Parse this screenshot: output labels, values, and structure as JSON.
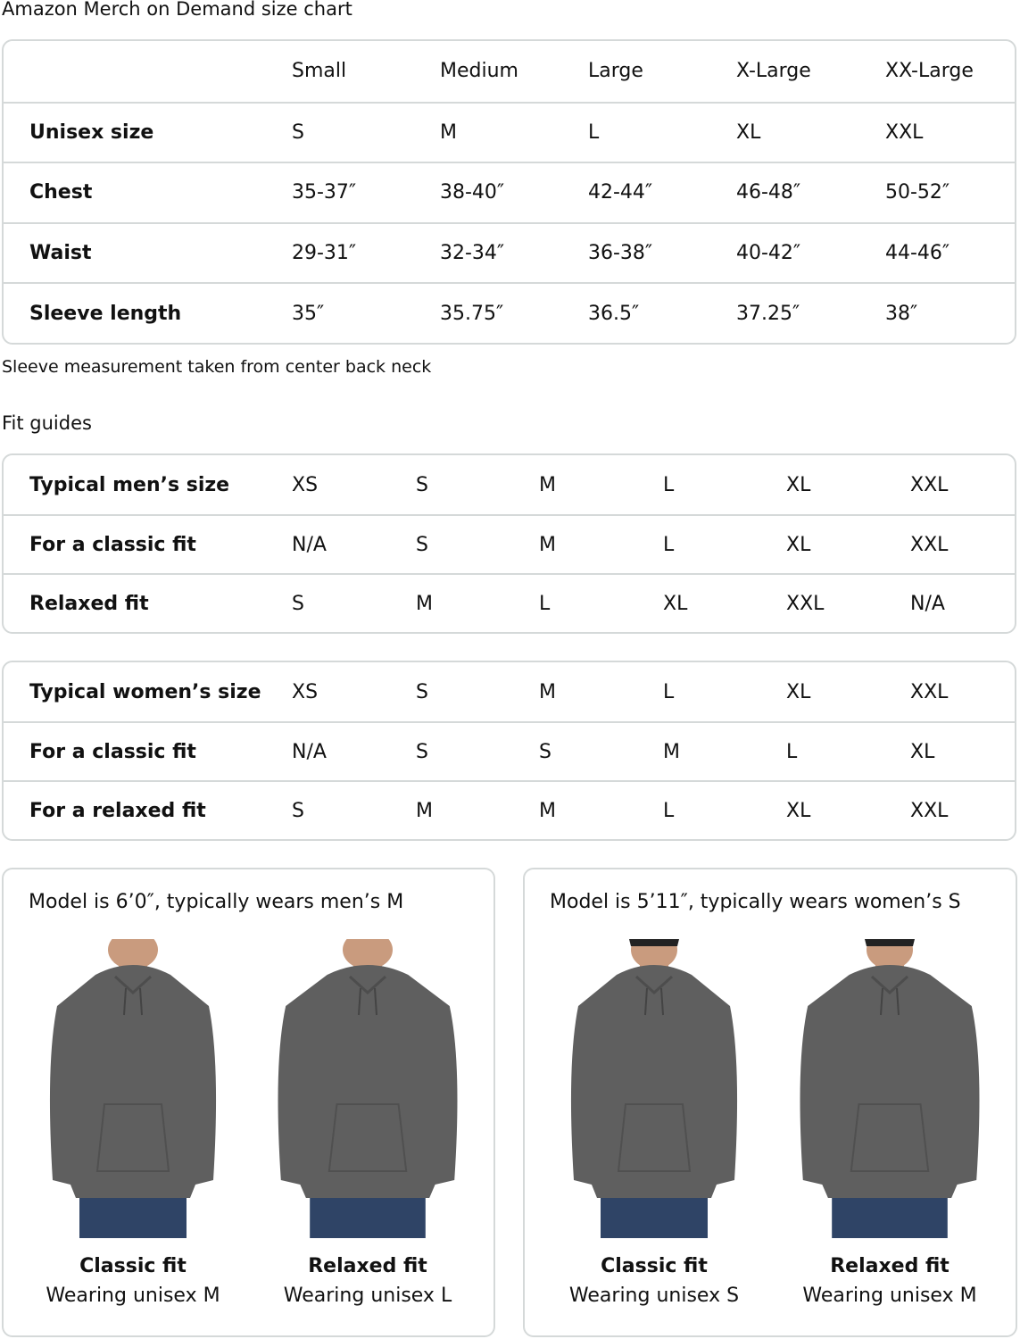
{
  "title": "Amazon Merch on Demand size chart",
  "size_chart": {
    "headers": [
      "",
      "Small",
      "Medium",
      "Large",
      "X-Large",
      "XX-Large"
    ],
    "rows": [
      {
        "label": "Unisex size",
        "values": [
          "S",
          "M",
          "L",
          "XL",
          "XXL"
        ]
      },
      {
        "label": "Chest",
        "values": [
          "35-37″",
          "38-40″",
          "42-44″",
          "46-48″",
          "50-52″"
        ]
      },
      {
        "label": "Waist",
        "values": [
          "29-31″",
          "32-34″",
          "36-38″",
          "40-42″",
          "44-46″"
        ]
      },
      {
        "label": "Sleeve length",
        "values": [
          "35″",
          "35.75″",
          "36.5″",
          "37.25″",
          "38″"
        ]
      }
    ]
  },
  "note": "Sleeve measurement taken from center back neck",
  "fit_guides_title": "Fit guides",
  "mens_fit": [
    {
      "label": "Typical men’s size",
      "values": [
        "XS",
        "S",
        "M",
        "L",
        "XL",
        "XXL"
      ]
    },
    {
      "label": "For a classic fit",
      "values": [
        "N/A",
        "S",
        "M",
        "L",
        "XL",
        "XXL"
      ]
    },
    {
      "label": "Relaxed fit",
      "values": [
        "S",
        "M",
        "L",
        "XL",
        "XXL",
        "N/A"
      ]
    }
  ],
  "womens_fit": [
    {
      "label": "Typical women’s size",
      "values": [
        "XS",
        "S",
        "M",
        "L",
        "XL",
        "XXL"
      ]
    },
    {
      "label": "For a classic fit",
      "values": [
        "N/A",
        "S",
        "S",
        "M",
        "L",
        "XL"
      ]
    },
    {
      "label": "For a relaxed fit",
      "values": [
        "S",
        "M",
        "M",
        "L",
        "XL",
        "XXL"
      ]
    }
  ],
  "models": [
    {
      "title": "Model is 6’0″, typically wears men’s M",
      "figures": [
        {
          "fit": "Classic fit",
          "wearing": "Wearing unisex M"
        },
        {
          "fit": "Relaxed fit",
          "wearing": "Wearing unisex L"
        }
      ]
    },
    {
      "title": "Model is 5’11″, typically wears women’s S",
      "figures": [
        {
          "fit": "Classic fit",
          "wearing": "Wearing unisex S"
        },
        {
          "fit": "Relaxed fit",
          "wearing": "Wearing unisex M"
        }
      ]
    }
  ],
  "colors": {
    "border": "#d5d9d9",
    "hoodie": "#5f5f5f",
    "jeans": "#2f4466"
  }
}
